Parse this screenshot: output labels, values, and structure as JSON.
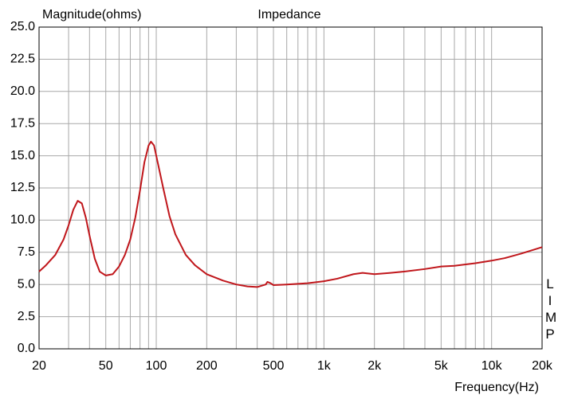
{
  "chart_data": {
    "type": "line",
    "title": "Impedance",
    "y_label": "Magnitude(ohms)",
    "x_label": "Frequency(Hz)",
    "side_label": "LIMP",
    "x_scale": "log",
    "grid": true,
    "xlim": [
      20,
      20000
    ],
    "ylim": [
      0,
      25
    ],
    "xticks": [
      20,
      50,
      100,
      200,
      500,
      {
        "value": 1000,
        "label": "1k"
      },
      {
        "value": 2000,
        "label": "2k"
      },
      {
        "value": 5000,
        "label": "5k"
      },
      {
        "value": 10000,
        "label": "10k"
      },
      {
        "value": 20000,
        "label": "20k"
      }
    ],
    "xminor_ticks": [
      30,
      40,
      60,
      70,
      80,
      90,
      300,
      400,
      600,
      700,
      800,
      900,
      3000,
      4000,
      6000,
      7000,
      8000,
      9000
    ],
    "yticks": [
      {
        "value": 0,
        "label": "0.0"
      },
      {
        "value": 2.5,
        "label": "2.5"
      },
      {
        "value": 5,
        "label": "5.0"
      },
      {
        "value": 7.5,
        "label": "7.5"
      },
      {
        "value": 10,
        "label": "10.0"
      },
      {
        "value": 12.5,
        "label": "12.5"
      },
      {
        "value": 15,
        "label": "15.0"
      },
      {
        "value": 17.5,
        "label": "17.5"
      },
      {
        "value": 20,
        "label": "20.0"
      },
      {
        "value": 22.5,
        "label": "22.5"
      },
      {
        "value": 25,
        "label": "25.0"
      }
    ],
    "series": [
      {
        "color": "#c0161b",
        "x": [
          20,
          22,
          25,
          28,
          30,
          32,
          34,
          36,
          38,
          40,
          43,
          46,
          50,
          55,
          60,
          65,
          70,
          75,
          80,
          85,
          90,
          93,
          97,
          100,
          110,
          120,
          130,
          150,
          170,
          200,
          250,
          300,
          350,
          400,
          450,
          460,
          480,
          500,
          600,
          700,
          800,
          1000,
          1200,
          1500,
          1700,
          2000,
          2500,
          3000,
          4000,
          5000,
          6000,
          8000,
          10000,
          12000,
          15000,
          20000
        ],
        "values": [
          6.0,
          6.5,
          7.3,
          8.5,
          9.6,
          10.8,
          11.5,
          11.3,
          10.2,
          8.8,
          7.0,
          6.0,
          5.7,
          5.8,
          6.4,
          7.3,
          8.5,
          10.2,
          12.3,
          14.5,
          15.8,
          16.1,
          15.8,
          15.0,
          12.5,
          10.3,
          8.9,
          7.3,
          6.5,
          5.8,
          5.3,
          5.0,
          4.85,
          4.8,
          5.0,
          5.2,
          5.1,
          4.95,
          5.0,
          5.05,
          5.1,
          5.25,
          5.45,
          5.8,
          5.9,
          5.8,
          5.9,
          6.0,
          6.2,
          6.4,
          6.45,
          6.65,
          6.85,
          7.05,
          7.4,
          7.9
        ]
      }
    ]
  }
}
